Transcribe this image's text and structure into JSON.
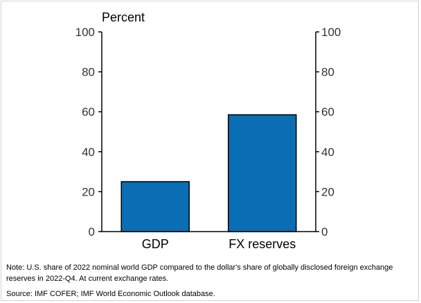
{
  "chart_data": {
    "type": "bar",
    "ylabel": "Percent",
    "categories": [
      "GDP",
      "FX reserves"
    ],
    "values": [
      25,
      58.5
    ],
    "ylim": [
      0,
      100
    ],
    "yticks": [
      0,
      20,
      40,
      60,
      80,
      100
    ],
    "y_axis_sides": "both",
    "grid": false,
    "bar_color": "#0A6EB4",
    "bar_edge_color": "#000000"
  },
  "note": "Note: U.S. share of 2022 nominal world GDP compared to the dollar's share of globally disclosed foreign exchange reserves in 2022-Q4. At current exchange rates.",
  "source": "Source: IMF COFER; IMF World Economic Outlook database."
}
